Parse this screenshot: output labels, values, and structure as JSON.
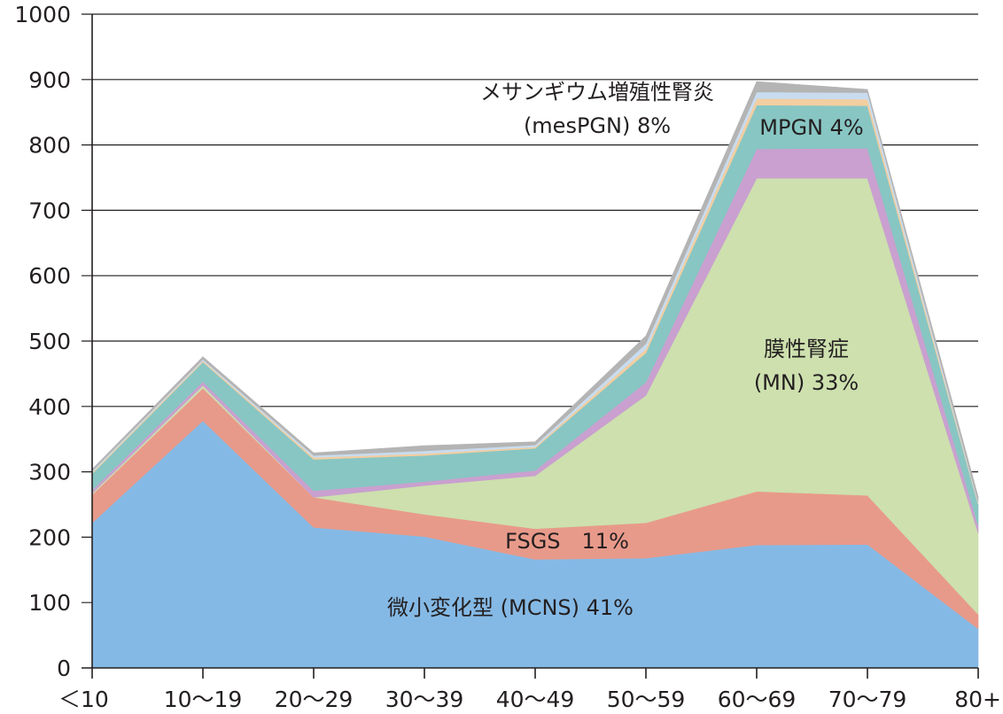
{
  "chart_data": {
    "type": "area",
    "stacked": true,
    "categories": [
      "＜10",
      "10～19",
      "20～29",
      "30～39",
      "40～49",
      "50～59",
      "60～69",
      "70～79",
      "80+"
    ],
    "ylim": [
      0,
      1000
    ],
    "yticks": [
      "0",
      "100",
      "200",
      "300",
      "400",
      "500",
      "600",
      "700",
      "800",
      "900",
      "1000"
    ],
    "grid": true,
    "series": [
      {
        "name": "微小変化型 (MCNS) 41%",
        "color": "#85b9e5",
        "values": [
          222,
          378,
          215,
          201,
          166,
          168,
          188,
          189,
          60
        ]
      },
      {
        "name": "FSGS　11%",
        "color": "#e89a8a",
        "values": [
          43,
          50,
          46,
          34,
          47,
          54,
          82,
          75,
          22
        ]
      },
      {
        "name": "膜性腎症 (MN) 33%",
        "color": "#cde0ae",
        "values": [
          2,
          4,
          0,
          44,
          81,
          195,
          479,
          485,
          124
        ]
      },
      {
        "name": "",
        "color": "#c9a0cf",
        "values": [
          5,
          6,
          10,
          6,
          8,
          20,
          45,
          46,
          12
        ]
      },
      {
        "name": "",
        "color": "#88c6c3",
        "values": [
          25,
          30,
          48,
          40,
          34,
          45,
          67,
          65,
          32
        ]
      },
      {
        "name": "",
        "color": "#f2cea0",
        "values": [
          2,
          2,
          3,
          3,
          2,
          6,
          10,
          10,
          2
        ]
      },
      {
        "name": "",
        "color": "#c9dcef",
        "values": [
          2,
          2,
          3,
          4,
          3,
          8,
          10,
          10,
          2
        ]
      },
      {
        "name": "",
        "color": "#b4b4b4",
        "values": [
          3,
          4,
          4,
          8,
          5,
          12,
          16,
          5,
          8
        ]
      }
    ],
    "annotations": [
      {
        "lines": [
          "メサンギウム増殖性腎炎",
          "(mesPGN) 8%"
        ]
      },
      {
        "lines": [
          "MPGN 4%"
        ]
      },
      {
        "lines": [
          "膜性腎症",
          "(MN) 33%"
        ]
      },
      {
        "lines": [
          "FSGS　11%"
        ]
      },
      {
        "lines": [
          "微小変化型 (MCNS) 41%"
        ]
      }
    ]
  }
}
